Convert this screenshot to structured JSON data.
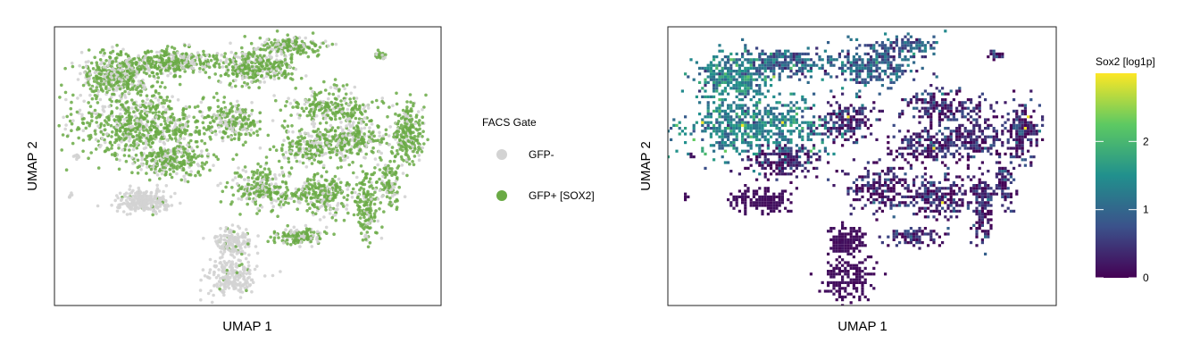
{
  "chart_data": [
    {
      "type": "scatter",
      "xlabel": "UMAP 1",
      "ylabel": "UMAP 2",
      "grid": false,
      "legend_placement": "right",
      "legend": {
        "title": "FACS Gate",
        "entries": [
          {
            "label": "GFP-",
            "color": "#d3d3d3"
          },
          {
            "label": "GFP+ [SOX2]",
            "color": "#6aaa45"
          }
        ]
      }
    },
    {
      "type": "heatmap",
      "xlabel": "UMAP 1",
      "ylabel": "UMAP 2",
      "grid": false,
      "colorbar": {
        "title": "Sox2 [log1p]",
        "ticks": [
          0,
          1,
          2
        ],
        "tick_labels": [
          "0",
          "1",
          "2"
        ],
        "range": [
          0,
          3
        ],
        "colormap": [
          "#440154",
          "#3b528b",
          "#21908d",
          "#5dc962",
          "#fde725"
        ]
      }
    }
  ]
}
